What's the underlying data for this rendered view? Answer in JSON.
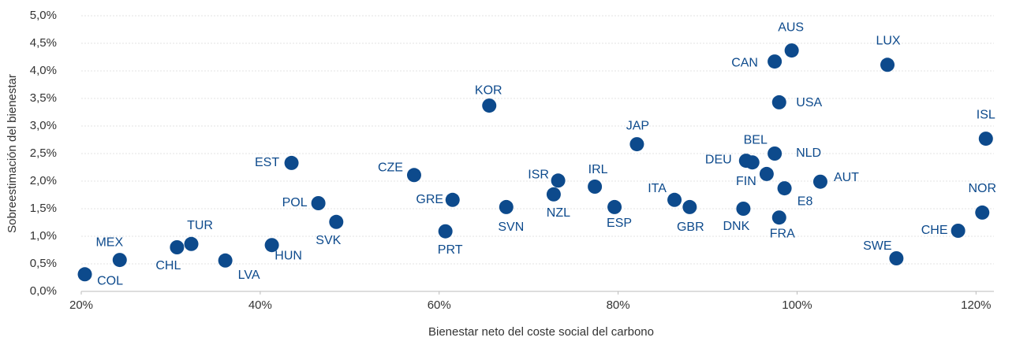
{
  "chart_data": {
    "type": "scatter",
    "xlabel": "Bienestar neto del coste social del carbono",
    "ylabel": "Sobreestimación del bienestar",
    "labels": [
      "COL",
      "MEX",
      "CHL",
      "TUR",
      "LVA",
      "HUN",
      "EST",
      "POL",
      "SVK",
      "CZE",
      "GRE",
      "PRT",
      "SVN",
      "KOR",
      "ISR",
      "NZL",
      "IRL",
      "ESP",
      "JAP",
      "ITA",
      "GBR",
      "DNK",
      "DEU",
      "BEL",
      "NLD",
      "FIN",
      "E8",
      "FRA",
      "AUT",
      "CAN",
      "AUS",
      "USA",
      "LUX",
      "ISL",
      "NOR",
      "CHE",
      "SWE"
    ],
    "x": [
      20.4,
      24.3,
      30.7,
      32.3,
      36.1,
      41.3,
      43.5,
      46.5,
      48.5,
      57.2,
      61.5,
      60.7,
      67.5,
      65.6,
      73.3,
      72.8,
      77.4,
      79.6,
      82.1,
      86.3,
      88.0,
      94.0,
      94.3,
      95.0,
      97.5,
      96.6,
      98.6,
      98.0,
      102.6,
      97.5,
      99.4,
      98.0,
      110.1,
      121.1,
      120.7,
      118.0,
      111.1
    ],
    "y": [
      0.31,
      0.57,
      0.8,
      0.86,
      0.56,
      0.84,
      2.33,
      1.6,
      1.26,
      2.11,
      1.66,
      1.09,
      1.53,
      3.37,
      2.01,
      1.76,
      1.9,
      1.53,
      2.67,
      1.66,
      1.53,
      1.5,
      2.37,
      2.34,
      2.5,
      2.13,
      1.87,
      1.34,
      1.99,
      4.17,
      4.37,
      3.43,
      4.11,
      2.77,
      1.43,
      1.1,
      0.6
    ],
    "color": "#0d4a8c",
    "xlim": [
      20,
      122
    ],
    "ylim": [
      0,
      5
    ],
    "xticks": [
      {
        "value": 20,
        "label": "20%"
      },
      {
        "value": 40,
        "label": "40%"
      },
      {
        "value": 60,
        "label": "60%"
      },
      {
        "value": 80,
        "label": "80%"
      },
      {
        "value": 100,
        "label": "100%"
      },
      {
        "value": 120,
        "label": "120%"
      }
    ],
    "yticks": [
      {
        "value": 0,
        "label": "0,0%"
      },
      {
        "value": 0.5,
        "label": "0,5%"
      },
      {
        "value": 1,
        "label": "1,0%"
      },
      {
        "value": 1.5,
        "label": "1,5%"
      },
      {
        "value": 2,
        "label": "2,0%"
      },
      {
        "value": 2.5,
        "label": "2,5%"
      },
      {
        "value": 3,
        "label": "3,0%"
      },
      {
        "value": 3.5,
        "label": "3,5%"
      },
      {
        "value": 4,
        "label": "4,0%"
      },
      {
        "value": 4.5,
        "label": "4,5%"
      },
      {
        "value": 5,
        "label": "5,0%"
      }
    ],
    "grid": true
  }
}
